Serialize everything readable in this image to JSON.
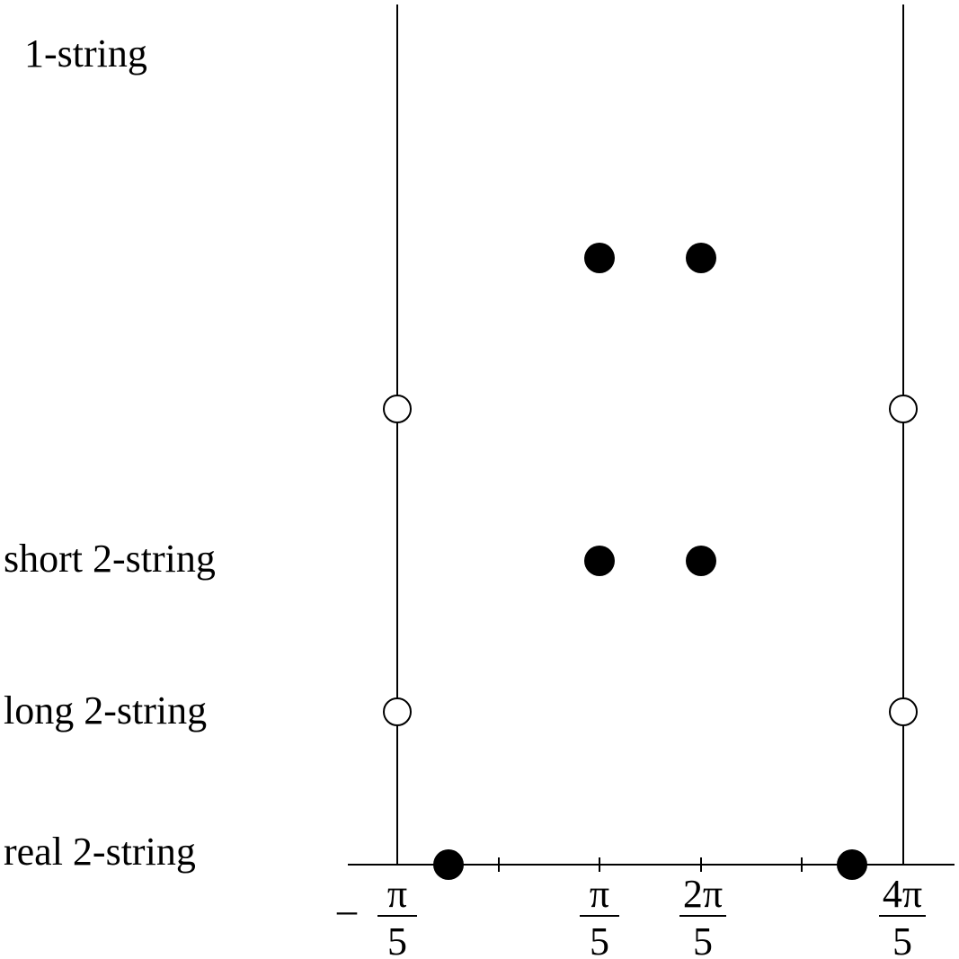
{
  "row_labels": {
    "one_string": "1-string",
    "short_two_string": "short 2-string",
    "long_two_string": "long 2-string",
    "real_two_string": "real 2-string"
  },
  "axis": {
    "ticks": [
      {
        "sign": "–",
        "numerator": "π",
        "denominator": "5"
      },
      {
        "sign": "",
        "numerator": "π",
        "denominator": "5"
      },
      {
        "sign": "",
        "numerator": "2π",
        "denominator": "5"
      },
      {
        "sign": "",
        "numerator": "4π",
        "denominator": "5"
      }
    ]
  },
  "colors": {
    "line": "#000000",
    "filled_marker": "#000000",
    "open_marker_fill": "#ffffff"
  },
  "markers": {
    "filled": "filled-circle",
    "open": "open-circle"
  }
}
